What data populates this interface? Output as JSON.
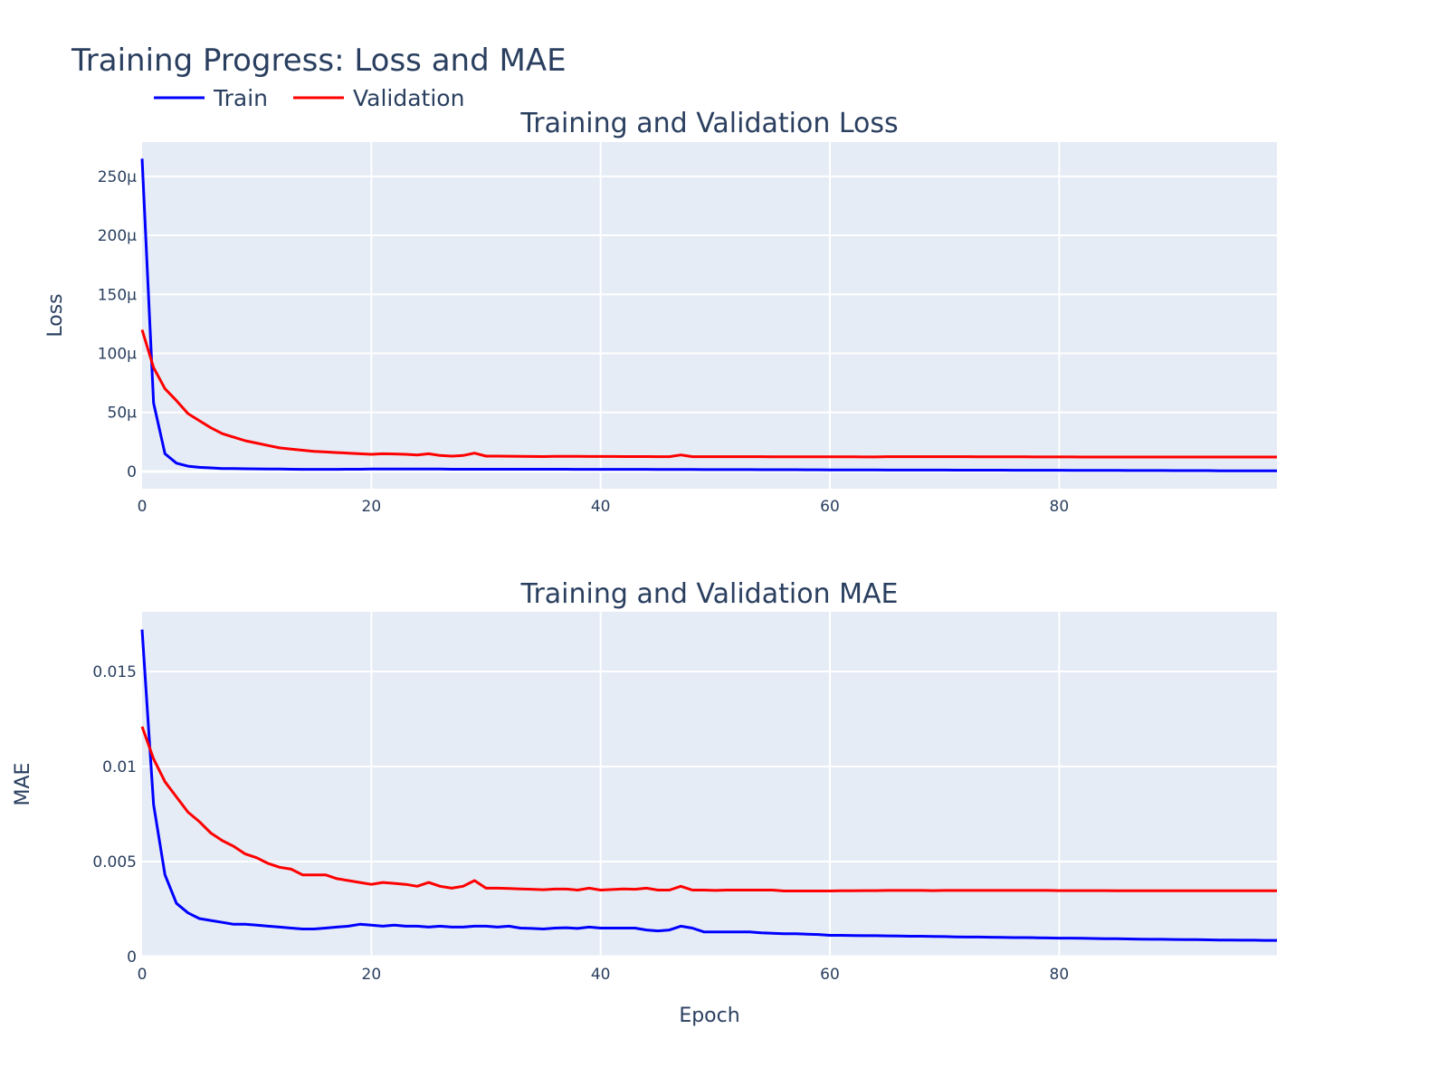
{
  "title": "Training Progress: Loss and MAE",
  "legend": [
    {
      "name": "Train",
      "color": "#0000ff"
    },
    {
      "name": "Validation",
      "color": "#ff0000"
    }
  ],
  "chart_data": [
    {
      "type": "line",
      "title": "Training and Validation Loss",
      "xlabel": "",
      "ylabel": "Loss",
      "xlim": [
        0,
        99
      ],
      "ylim": [
        -1.46e-05,
        0.000279
      ],
      "x_ticks": [
        {
          "v": 0,
          "label": "0"
        },
        {
          "v": 20,
          "label": "20"
        },
        {
          "v": 40,
          "label": "40"
        },
        {
          "v": 60,
          "label": "60"
        },
        {
          "v": 80,
          "label": "80"
        }
      ],
      "y_ticks": [
        {
          "v": 0,
          "label": "0"
        },
        {
          "v": 5e-05,
          "label": "50μ"
        },
        {
          "v": 0.0001,
          "label": "100μ"
        },
        {
          "v": 0.00015,
          "label": "150μ"
        },
        {
          "v": 0.0002,
          "label": "200μ"
        },
        {
          "v": 0.00025,
          "label": "250μ"
        }
      ],
      "grid": true,
      "unit_scale": 1e-06,
      "series": [
        {
          "name": "Train",
          "color": "#0000ff",
          "values": [
            265,
            58,
            15,
            7,
            4.5,
            3.5,
            3,
            2.5,
            2.4,
            2.3,
            2.2,
            2.1,
            2,
            1.9,
            1.8,
            1.8,
            1.8,
            1.8,
            1.9,
            1.9,
            2,
            2,
            2.1,
            2.1,
            2.1,
            2.1,
            2.1,
            1.9,
            1.9,
            1.9,
            1.9,
            1.9,
            1.9,
            1.9,
            1.9,
            1.9,
            1.9,
            1.9,
            1.8,
            1.8,
            1.8,
            1.8,
            1.8,
            1.8,
            1.8,
            1.7,
            1.7,
            1.7,
            1.7,
            1.6,
            1.6,
            1.6,
            1.6,
            1.6,
            1.5,
            1.5,
            1.5,
            1.5,
            1.4,
            1.4,
            1.3,
            1.3,
            1.3,
            1.3,
            1.3,
            1.2,
            1.2,
            1.2,
            1.2,
            1.2,
            1.2,
            1.1,
            1.1,
            1.1,
            1.1,
            1.1,
            1.0,
            1.0,
            1.0,
            1.0,
            1.0,
            0.9,
            0.9,
            0.9,
            0.9,
            0.9,
            0.8,
            0.8,
            0.8,
            0.8,
            0.7,
            0.7,
            0.7,
            0.7,
            0.6,
            0.6,
            0.6,
            0.6,
            0.5,
            0.5
          ]
        },
        {
          "name": "Validation",
          "color": "#ff0000",
          "values": [
            120,
            88,
            70,
            60,
            49,
            43,
            37,
            32,
            29,
            26,
            24,
            22,
            20,
            19,
            18,
            17,
            16.5,
            16,
            15.5,
            15,
            14.5,
            15,
            14.8,
            14.5,
            14,
            15,
            13.5,
            13,
            13.5,
            15.5,
            13,
            13,
            12.9,
            12.8,
            12.7,
            12.6,
            12.8,
            12.8,
            12.8,
            12.7,
            12.7,
            12.7,
            12.6,
            12.6,
            12.6,
            12.5,
            12.5,
            14,
            12.5,
            12.5,
            12.5,
            12.5,
            12.5,
            12.5,
            12.5,
            12.4,
            12.4,
            12.4,
            12.4,
            12.4,
            12.4,
            12.4,
            12.4,
            12.3,
            12.3,
            12.5,
            12.5,
            12.5,
            12.5,
            12.5,
            12.5,
            12.5,
            12.5,
            12.4,
            12.4,
            12.4,
            12.4,
            12.4,
            12.3,
            12.3,
            12.3,
            12.3,
            12.2,
            12.2,
            12.2,
            12.2,
            12.2,
            12.2,
            12.2,
            12.2,
            12.2,
            12.2,
            12.2,
            12.2,
            12.2,
            12.2,
            12.2,
            12.2,
            12.2,
            12.2
          ]
        }
      ]
    },
    {
      "type": "line",
      "title": "Training and Validation MAE",
      "xlabel": "Epoch",
      "ylabel": "MAE",
      "xlim": [
        0,
        99
      ],
      "ylim": [
        0,
        0.01814
      ],
      "x_ticks": [
        {
          "v": 0,
          "label": "0"
        },
        {
          "v": 20,
          "label": "20"
        },
        {
          "v": 40,
          "label": "40"
        },
        {
          "v": 60,
          "label": "60"
        },
        {
          "v": 80,
          "label": "80"
        }
      ],
      "y_ticks": [
        {
          "v": 0,
          "label": "0"
        },
        {
          "v": 0.005,
          "label": "0.005"
        },
        {
          "v": 0.01,
          "label": "0.01"
        },
        {
          "v": 0.015,
          "label": "0.015"
        }
      ],
      "grid": true,
      "unit_scale": 1,
      "series": [
        {
          "name": "Train",
          "color": "#0000ff",
          "values": [
            0.0172,
            0.008,
            0.0043,
            0.0028,
            0.0023,
            0.002,
            0.0019,
            0.0018,
            0.0017,
            0.0017,
            0.00165,
            0.0016,
            0.00155,
            0.0015,
            0.00145,
            0.00145,
            0.0015,
            0.00155,
            0.0016,
            0.0017,
            0.00165,
            0.0016,
            0.00165,
            0.0016,
            0.0016,
            0.00155,
            0.0016,
            0.00155,
            0.00155,
            0.0016,
            0.0016,
            0.00155,
            0.0016,
            0.0015,
            0.00148,
            0.00145,
            0.0015,
            0.00152,
            0.00148,
            0.00155,
            0.0015,
            0.0015,
            0.0015,
            0.0015,
            0.0014,
            0.00135,
            0.0014,
            0.0016,
            0.0015,
            0.0013,
            0.0013,
            0.0013,
            0.0013,
            0.0013,
            0.00125,
            0.00123,
            0.0012,
            0.0012,
            0.00118,
            0.00116,
            0.00112,
            0.00112,
            0.00111,
            0.0011,
            0.0011,
            0.00109,
            0.00108,
            0.00107,
            0.00107,
            0.00106,
            0.00105,
            0.00104,
            0.00103,
            0.00103,
            0.00102,
            0.00101,
            0.001,
            0.001,
            0.00099,
            0.00098,
            0.00097,
            0.00097,
            0.00096,
            0.00095,
            0.00094,
            0.00094,
            0.00093,
            0.00092,
            0.00091,
            0.00091,
            0.0009,
            0.00089,
            0.00089,
            0.00088,
            0.00087,
            0.00087,
            0.00086,
            0.00086,
            0.00085,
            0.00085
          ]
        },
        {
          "name": "Validation",
          "color": "#ff0000",
          "values": [
            0.0121,
            0.0104,
            0.0092,
            0.0084,
            0.0076,
            0.0071,
            0.0065,
            0.0061,
            0.0058,
            0.0054,
            0.0052,
            0.0049,
            0.0047,
            0.0046,
            0.0043,
            0.0043,
            0.0043,
            0.0041,
            0.004,
            0.0039,
            0.0038,
            0.0039,
            0.00385,
            0.0038,
            0.0037,
            0.0039,
            0.0037,
            0.0036,
            0.0037,
            0.004,
            0.0036,
            0.0036,
            0.00358,
            0.00356,
            0.00354,
            0.00352,
            0.00355,
            0.00355,
            0.0035,
            0.0036,
            0.0035,
            0.00353,
            0.00356,
            0.00354,
            0.0036,
            0.0035,
            0.0035,
            0.0037,
            0.0035,
            0.0035,
            0.00348,
            0.0035,
            0.0035,
            0.0035,
            0.0035,
            0.0035,
            0.00345,
            0.00345,
            0.00345,
            0.00345,
            0.00345,
            0.00346,
            0.00346,
            0.00347,
            0.00347,
            0.00348,
            0.00348,
            0.00348,
            0.00348,
            0.00347,
            0.00348,
            0.00348,
            0.00348,
            0.00348,
            0.00348,
            0.00348,
            0.00348,
            0.00348,
            0.00348,
            0.00348,
            0.00347,
            0.00347,
            0.00347,
            0.00347,
            0.00347,
            0.00346,
            0.00346,
            0.00346,
            0.00346,
            0.00346,
            0.00346,
            0.00346,
            0.00346,
            0.00346,
            0.00346,
            0.00346,
            0.00346,
            0.00346,
            0.00346,
            0.00346
          ]
        }
      ]
    }
  ]
}
